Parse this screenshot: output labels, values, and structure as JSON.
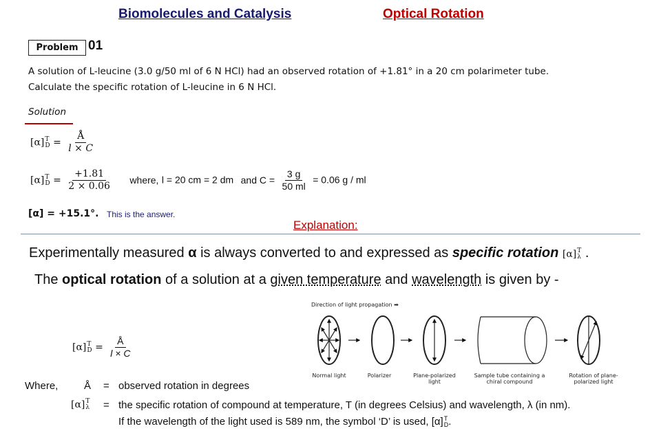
{
  "header": {
    "course": "Biomolecules and Catalysis",
    "topic": "Optical Rotation",
    "course_color": "#1a1a6e",
    "topic_color": "#c00000"
  },
  "problem": {
    "label": "Problem",
    "number": "01",
    "line1": "A solution of L-leucine (3.0 g/50 ml of 6 N HCl) had an observed rotation of +1.81° in a 20 cm polarimeter tube.",
    "line2": "Calculate the specific rotation of L-leucine in 6 N HCl."
  },
  "solution": {
    "title": "Solution",
    "alpha": "[α]",
    "sup": "T",
    "sub": "D",
    "eq": "=",
    "num1": "Å",
    "den1": "l × C",
    "num2": "+1.81",
    "den2": "2 × 0.06",
    "where": "where,",
    "l_def": "l = 20 cm = 2 dm",
    "and": "and C =",
    "c_num": "3 g",
    "c_den": "50 ml",
    "c_val": "= 0.06 g / ml",
    "answer": "[α] = +15.1°.",
    "answer_note": "This is the answer."
  },
  "explanation": {
    "title": "Explanation:",
    "line1_pre": "Experimentally measured",
    "line1_alpha": "α",
    "line1_mid": "is always converted to and expressed as",
    "line1_em": "specific rotation",
    "line1_sym": "[α]",
    "line1_sup": "T",
    "line1_sub": "λ",
    "line1_end": ".",
    "line2_pre": "The",
    "line2_bold": "optical rotation",
    "line2_mid": "of a solution at a",
    "line2_u1": "given temperature",
    "line2_and": "and",
    "line2_u2": "wavelength",
    "line2_end": "is given by -"
  },
  "formula": {
    "alpha": "[α]",
    "sup": "T",
    "sub": "D",
    "eq": "=",
    "num": "Å",
    "den": "l × C"
  },
  "where": {
    "label": "Where,",
    "sym1": "Å",
    "eq": "=",
    "def1": "observed rotation in degrees",
    "sym2": "[α]",
    "sym2_sup": "T",
    "sym2_sub": "λ",
    "def2": "the specific rotation of compound at temperature, T (in degrees Celsius) and wavelength, λ (in nm).",
    "def3": "If the wavelength of the light used is 589 nm, the symbol ‘D’ is used, [α]",
    "def3_sup": "T",
    "def3_sub": "D",
    "def3_end": "."
  },
  "diagram": {
    "direction": "Direction of light propagation",
    "captions": [
      "Normal light",
      "Polarizer",
      "Plane-polarized light",
      "Sample tube containing a chiral compound",
      "Rotation of plane-polarized light"
    ]
  }
}
